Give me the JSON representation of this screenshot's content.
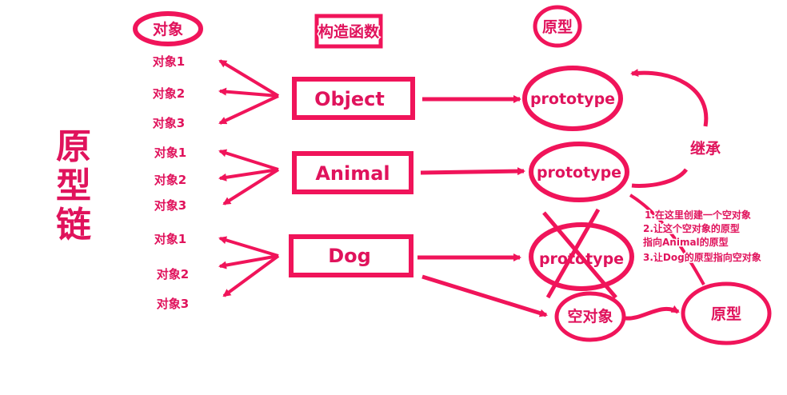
{
  "title_chars": [
    "原",
    "型",
    "链"
  ],
  "headers": {
    "object": "对象",
    "constructor": "构造函数",
    "prototype": "原型"
  },
  "constructors": [
    "Object",
    "Animal",
    "Dog"
  ],
  "instances": {
    "object": [
      "对象1",
      "对象2",
      "对象3"
    ],
    "animal": [
      "对象1",
      "对象2",
      "对象3"
    ],
    "dog": [
      "对象1",
      "对象2",
      "对象3"
    ]
  },
  "prototype_label": "prototype",
  "inherit_label": "继承",
  "empty_object_label": "空对象",
  "proto_label": "原型",
  "steps": [
    "1.在这里创建一个空对象",
    "2.让这个空对象的原型",
    "指向Animal的原型",
    "3.让Dog的原型指向空对象"
  ],
  "colors": {
    "accent": "#f0145a",
    "text": "#e0135c",
    "background": "#ffffff"
  }
}
